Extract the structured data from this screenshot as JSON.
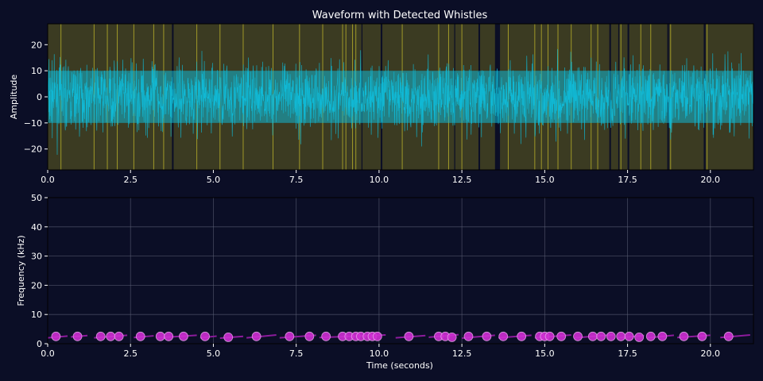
{
  "colors": {
    "background": "#0b0e26",
    "waveform": "#10b8d4",
    "whistle_band": "#3b3b22",
    "whistle_line": "#b9b02a",
    "gap": "#0b0e26",
    "marker": "#cf2fd3",
    "track": "#8c1b9c",
    "grid": "#5a5d73",
    "text": "#ffffff"
  },
  "chart_data": [
    {
      "type": "line",
      "title": "Waveform with Detected Whistles",
      "xlabel": "",
      "ylabel": "Amplitude",
      "xlim": [
        0,
        21.3
      ],
      "ylim": [
        -28,
        28
      ],
      "xticks": [
        "0.0",
        "2.5",
        "5.0",
        "7.5",
        "10.0",
        "12.5",
        "15.0",
        "17.5",
        "20.0"
      ],
      "yticks": [
        "20",
        "10",
        "0",
        "−10",
        "−20"
      ],
      "grid": false,
      "series": [
        {
          "values_description_only": "",
          "amplitude_envelope": 12,
          "peak": 23
        }
      ],
      "whistle_regions": [
        [
          0.0,
          3.75
        ],
        [
          3.8,
          9.47
        ],
        [
          9.5,
          10.05
        ],
        [
          10.1,
          12.27
        ],
        [
          12.3,
          13.0
        ],
        [
          13.05,
          13.5
        ],
        [
          13.65,
          16.95
        ],
        [
          17.0,
          17.22
        ],
        [
          17.25,
          17.5
        ],
        [
          17.55,
          18.7
        ],
        [
          18.75,
          19.8
        ],
        [
          19.85,
          21.3
        ]
      ],
      "whistle_lines": [
        0.4,
        1.4,
        1.8,
        2.1,
        2.6,
        3.2,
        3.5,
        4.5,
        5.2,
        5.9,
        6.8,
        7.6,
        8.3,
        8.9,
        9.0,
        9.2,
        9.3,
        10.7,
        11.8,
        12.1,
        12.5,
        13.9,
        14.7,
        14.9,
        15.1,
        15.4,
        15.8,
        16.4,
        16.6,
        17.3,
        17.9,
        18.2,
        18.8,
        19.9
      ]
    },
    {
      "type": "scatter",
      "title": "",
      "xlabel": "Time (seconds)",
      "ylabel": "Frequency (kHz)",
      "xlim": [
        0,
        21.3
      ],
      "ylim": [
        0,
        50
      ],
      "xticks": [
        "0.0",
        "2.5",
        "5.0",
        "7.5",
        "10.0",
        "12.5",
        "15.0",
        "17.5",
        "20.0"
      ],
      "yticks": [
        "50",
        "40",
        "30",
        "20",
        "10",
        "0"
      ],
      "grid": true,
      "points": [
        {
          "x": 0.25,
          "y": 2.5
        },
        {
          "x": 0.9,
          "y": 2.5
        },
        {
          "x": 1.6,
          "y": 2.5
        },
        {
          "x": 1.9,
          "y": 2.5
        },
        {
          "x": 2.15,
          "y": 2.5
        },
        {
          "x": 2.8,
          "y": 2.5
        },
        {
          "x": 3.4,
          "y": 2.5
        },
        {
          "x": 3.65,
          "y": 2.5
        },
        {
          "x": 4.1,
          "y": 2.5
        },
        {
          "x": 4.75,
          "y": 2.5
        },
        {
          "x": 5.45,
          "y": 2.2
        },
        {
          "x": 6.3,
          "y": 2.5
        },
        {
          "x": 7.3,
          "y": 2.5
        },
        {
          "x": 7.9,
          "y": 2.5
        },
        {
          "x": 8.4,
          "y": 2.5
        },
        {
          "x": 8.9,
          "y": 2.5
        },
        {
          "x": 9.1,
          "y": 2.5
        },
        {
          "x": 9.3,
          "y": 2.5
        },
        {
          "x": 9.45,
          "y": 2.5
        },
        {
          "x": 9.65,
          "y": 2.5
        },
        {
          "x": 9.8,
          "y": 2.5
        },
        {
          "x": 9.95,
          "y": 2.5
        },
        {
          "x": 10.9,
          "y": 2.5
        },
        {
          "x": 11.8,
          "y": 2.5
        },
        {
          "x": 12.0,
          "y": 2.5
        },
        {
          "x": 12.2,
          "y": 2.2
        },
        {
          "x": 12.7,
          "y": 2.5
        },
        {
          "x": 13.25,
          "y": 2.5
        },
        {
          "x": 13.75,
          "y": 2.5
        },
        {
          "x": 14.3,
          "y": 2.5
        },
        {
          "x": 14.85,
          "y": 2.5
        },
        {
          "x": 15.0,
          "y": 2.5
        },
        {
          "x": 15.15,
          "y": 2.5
        },
        {
          "x": 15.5,
          "y": 2.5
        },
        {
          "x": 16.0,
          "y": 2.5
        },
        {
          "x": 16.45,
          "y": 2.5
        },
        {
          "x": 16.7,
          "y": 2.5
        },
        {
          "x": 17.0,
          "y": 2.5
        },
        {
          "x": 17.3,
          "y": 2.5
        },
        {
          "x": 17.55,
          "y": 2.5
        },
        {
          "x": 17.85,
          "y": 2.2
        },
        {
          "x": 18.2,
          "y": 2.5
        },
        {
          "x": 18.55,
          "y": 2.5
        },
        {
          "x": 19.2,
          "y": 2.5
        },
        {
          "x": 19.75,
          "y": 2.5
        },
        {
          "x": 20.55,
          "y": 2.5
        }
      ],
      "tracks": [
        [
          [
            0.0,
            2.0
          ],
          [
            0.6,
            2.6
          ]
        ],
        [
          [
            0.7,
            2.3
          ],
          [
            1.2,
            2.8
          ]
        ],
        [
          [
            1.4,
            2.0
          ],
          [
            2.4,
            2.9
          ]
        ],
        [
          [
            2.6,
            2.1
          ],
          [
            3.2,
            2.7
          ]
        ],
        [
          [
            3.3,
            2.0
          ],
          [
            4.5,
            2.9
          ]
        ],
        [
          [
            4.6,
            2.0
          ],
          [
            5.1,
            2.6
          ]
        ],
        [
          [
            5.2,
            1.9
          ],
          [
            5.9,
            2.5
          ]
        ],
        [
          [
            6.0,
            2.0
          ],
          [
            6.9,
            3.0
          ]
        ],
        [
          [
            7.0,
            2.0
          ],
          [
            8.1,
            2.9
          ]
        ],
        [
          [
            8.2,
            2.1
          ],
          [
            10.2,
            3.0
          ]
        ],
        [
          [
            10.5,
            2.0
          ],
          [
            11.4,
            2.8
          ]
        ],
        [
          [
            11.5,
            2.2
          ],
          [
            12.4,
            3.1
          ]
        ],
        [
          [
            12.5,
            1.9
          ],
          [
            13.5,
            2.9
          ]
        ],
        [
          [
            13.6,
            2.0
          ],
          [
            14.6,
            2.9
          ]
        ],
        [
          [
            14.7,
            2.0
          ],
          [
            15.8,
            3.0
          ]
        ],
        [
          [
            15.9,
            2.0
          ],
          [
            17.1,
            3.1
          ]
        ],
        [
          [
            17.2,
            2.0
          ],
          [
            18.0,
            2.8
          ]
        ],
        [
          [
            18.1,
            2.0
          ],
          [
            18.9,
            2.9
          ]
        ],
        [
          [
            19.0,
            2.1
          ],
          [
            20.0,
            2.9
          ]
        ],
        [
          [
            20.3,
            2.1
          ],
          [
            21.2,
            3.0
          ]
        ]
      ]
    }
  ]
}
